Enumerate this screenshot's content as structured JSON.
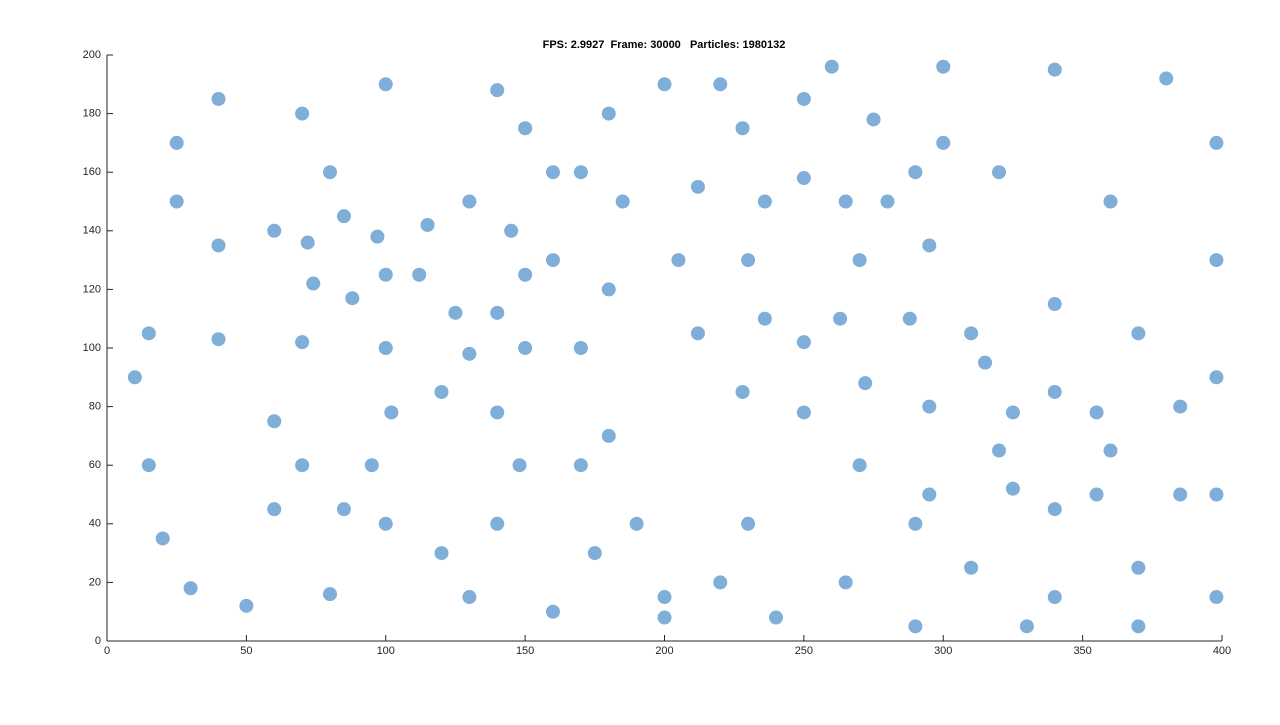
{
  "chart_data": {
    "type": "scatter",
    "title": "FPS: 2.9927  Frame: 30000   Particles: 1980132",
    "color": "#2a78c0",
    "x": [
      250,
      275,
      290,
      295,
      288,
      272,
      250,
      228,
      212,
      205,
      212,
      228,
      250,
      265,
      270,
      263,
      250,
      236,
      230,
      236,
      340,
      370,
      385,
      385,
      370,
      340,
      310,
      295,
      295,
      310,
      340,
      355,
      360,
      355,
      340,
      325,
      320,
      325,
      220,
      260,
      300,
      340,
      380,
      398,
      398,
      398,
      398,
      398,
      370,
      330,
      290,
      160,
      170,
      180,
      190,
      200,
      240,
      170,
      180,
      200,
      130,
      145,
      150,
      140,
      125,
      112,
      115,
      85,
      97,
      100,
      88,
      74,
      72,
      40,
      70,
      80,
      60,
      40,
      25,
      25,
      15,
      40,
      70,
      100,
      130,
      150,
      100,
      140,
      150,
      160,
      120,
      140,
      148,
      140,
      120,
      100,
      95,
      102,
      130,
      160,
      200,
      10,
      15,
      20,
      30,
      50,
      80,
      60,
      70,
      85,
      60,
      170,
      175,
      230,
      220,
      270,
      265,
      290,
      320,
      360,
      300,
      315,
      280,
      180,
      185
    ],
    "values": [
      185,
      178,
      160,
      135,
      110,
      88,
      78,
      85,
      105,
      130,
      155,
      175,
      158,
      150,
      130,
      110,
      102,
      110,
      130,
      150,
      115,
      105,
      80,
      50,
      25,
      15,
      25,
      50,
      80,
      105,
      85,
      78,
      65,
      50,
      45,
      52,
      65,
      78,
      190,
      196,
      196,
      195,
      192,
      170,
      130,
      90,
      50,
      15,
      5,
      5,
      5,
      130,
      100,
      70,
      40,
      15,
      8,
      160,
      180,
      190,
      150,
      140,
      125,
      112,
      112,
      125,
      142,
      145,
      138,
      125,
      117,
      122,
      136,
      185,
      180,
      160,
      140,
      135,
      150,
      170,
      105,
      103,
      102,
      100,
      98,
      100,
      190,
      188,
      175,
      160,
      85,
      78,
      60,
      40,
      30,
      40,
      60,
      78,
      15,
      10,
      8,
      90,
      60,
      35,
      18,
      12,
      16,
      75,
      60,
      45,
      45,
      60,
      30,
      40,
      20,
      60,
      20,
      40,
      160,
      150,
      170,
      95,
      150,
      120,
      150
    ],
    "xlim": [
      0,
      400
    ],
    "xticks": [
      0,
      50,
      100,
      150,
      200,
      250,
      300,
      350,
      400
    ],
    "ylim": [
      0,
      200
    ],
    "yticks": [
      0,
      20,
      40,
      60,
      80,
      100,
      120,
      140,
      160,
      180,
      200
    ]
  }
}
